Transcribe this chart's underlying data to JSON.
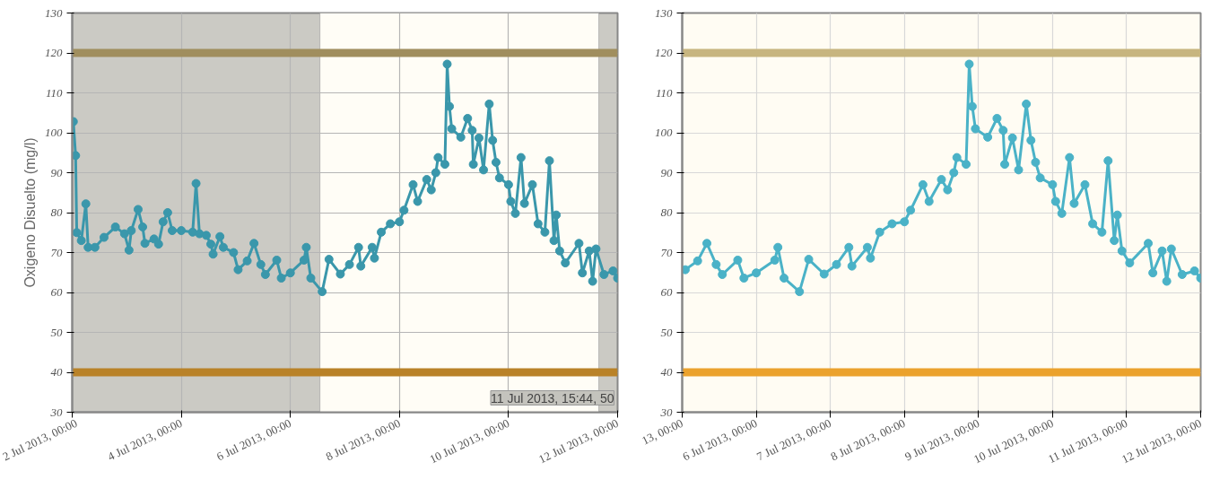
{
  "chart_data": [
    {
      "type": "line",
      "ylabel": "Oxigeno Disuelto (mg/l)",
      "marker": "circle",
      "line_style": "solid",
      "grid": true,
      "xlim": [
        "2013-07-02",
        "2013-07-12"
      ],
      "ylim": [
        30,
        130
      ],
      "xticks": [
        {
          "value": "2013-07-02",
          "label": "2 Jul 2013, 00:00"
        },
        {
          "value": "2013-07-04",
          "label": "4 Jul 2013, 00:00"
        },
        {
          "value": "2013-07-06",
          "label": "6 Jul 2013, 00:00"
        },
        {
          "value": "2013-07-08",
          "label": "8 Jul 2013, 00:00"
        },
        {
          "value": "2013-07-10",
          "label": "10 Jul 2013, 00:00"
        },
        {
          "value": "2013-07-12",
          "label": "12 Jul 2013, 00:00"
        }
      ],
      "yticks": [
        30,
        40,
        50,
        60,
        70,
        80,
        90,
        100,
        110,
        120,
        130
      ],
      "ref_lines": [
        {
          "axis": "y",
          "value": 120,
          "color": "#a08e5e"
        },
        {
          "axis": "y",
          "value": 40,
          "color": "#b98228"
        }
      ],
      "bands": [
        {
          "axis": "x",
          "from": "2013-07-06T13:00",
          "to": "2013-07-11T15:44",
          "color": "#fffdf6"
        }
      ],
      "annotations": [
        "11 Jul 2013, 15:44, 50"
      ],
      "x": [
        "2013-07-02T00:30",
        "2013-07-02T01:30",
        "2013-07-02T02:00",
        "2013-07-02T04:00",
        "2013-07-02T06:00",
        "2013-07-02T07:00",
        "2013-07-02T10:00",
        "2013-07-02T14:00",
        "2013-07-02T19:00",
        "2013-07-02T23:00",
        "2013-07-03T01:00",
        "2013-07-03T02:00",
        "2013-07-03T05:00",
        "2013-07-03T07:00",
        "2013-07-03T08:00",
        "2013-07-03T12:00",
        "2013-07-03T14:00",
        "2013-07-03T16:00",
        "2013-07-03T18:00",
        "2013-07-03T20:00",
        "2013-07-04T00:00",
        "2013-07-04T05:00",
        "2013-07-04T06:30",
        "2013-07-04T08:00",
        "2013-07-04T11:00",
        "2013-07-04T13:00",
        "2013-07-04T14:00",
        "2013-07-04T17:00",
        "2013-07-04T18:30",
        "2013-07-04T23:00",
        "2013-07-05T01:00",
        "2013-07-05T05:00",
        "2013-07-05T08:00",
        "2013-07-05T11:00",
        "2013-07-05T13:00",
        "2013-07-05T18:00",
        "2013-07-05T20:00",
        "2013-07-06T00:00",
        "2013-07-06T06:00",
        "2013-07-06T07:00",
        "2013-07-06T09:00",
        "2013-07-06T14:00",
        "2013-07-06T17:00",
        "2013-07-06T22:00",
        "2013-07-07T02:00",
        "2013-07-07T06:00",
        "2013-07-07T07:00",
        "2013-07-07T12:00",
        "2013-07-07T13:00",
        "2013-07-07T16:00",
        "2013-07-07T20:00",
        "2013-07-08T00:00",
        "2013-07-08T02:00",
        "2013-07-08T06:00",
        "2013-07-08T08:00",
        "2013-07-08T12:00",
        "2013-07-08T14:00",
        "2013-07-08T16:00",
        "2013-07-08T17:00",
        "2013-07-08T20:00",
        "2013-07-08T21:00",
        "2013-07-08T22:00",
        "2013-07-08T23:00",
        "2013-07-09T03:00",
        "2013-07-09T06:00",
        "2013-07-09T08:00",
        "2013-07-09T08:30",
        "2013-07-09T11:00",
        "2013-07-09T13:00",
        "2013-07-09T15:30",
        "2013-07-09T17:00",
        "2013-07-09T18:30",
        "2013-07-09T20:00",
        "2013-07-10T00:00",
        "2013-07-10T01:00",
        "2013-07-10T03:00",
        "2013-07-10T05:30",
        "2013-07-10T07:00",
        "2013-07-10T10:30",
        "2013-07-10T13:00",
        "2013-07-10T16:00",
        "2013-07-10T18:00",
        "2013-07-10T20:00",
        "2013-07-10T21:00",
        "2013-07-10T22:30",
        "2013-07-11T01:00",
        "2013-07-11T07:00",
        "2013-07-11T08:30",
        "2013-07-11T11:30",
        "2013-07-11T13:00",
        "2013-07-11T14:30",
        "2013-07-11T18:00",
        "2013-07-11T22:00",
        "2013-07-12T00:00"
      ],
      "series": [
        {
          "color": "#3a97ab",
          "values": [
            102.8,
            94.3,
            75,
            73,
            82.2,
            71.3,
            71.3,
            73.8,
            76.4,
            74.7,
            70.6,
            75.5,
            80.8,
            76.4,
            72.3,
            73.4,
            72.1,
            77.7,
            80,
            75.5,
            75.5,
            75.1,
            87.3,
            74.7,
            74.3,
            72.1,
            69.6,
            74,
            71.3,
            70,
            65.7,
            67.9,
            72.3,
            67,
            64.5,
            68.1,
            63.6,
            64.9,
            68.1,
            71.3,
            63.6,
            60.2,
            68.3,
            64.6,
            67,
            71.3,
            66.6,
            71.3,
            68.6,
            75.1,
            77.2,
            77.7,
            80.6,
            87,
            82.8,
            88.3,
            85.7,
            90,
            93.8,
            92.1,
            117.2,
            106.6,
            101,
            98.9,
            103.6,
            100.6,
            92.1,
            98.7,
            90.7,
            107.2,
            98.1,
            92.6,
            88.7,
            87,
            82.8,
            79.8,
            93.8,
            82.3,
            87,
            77.2,
            75.1,
            93,
            73,
            79.4,
            70.4,
            67.4,
            72.3,
            64.9,
            70.4,
            62.8,
            70.9,
            64.5,
            65.4,
            63.6
          ]
        }
      ]
    },
    {
      "type": "line",
      "marker": "circle",
      "line_style": "solid",
      "grid": true,
      "xlim": [
        "2013-07-05",
        "2013-07-12"
      ],
      "ylim": [
        30,
        130
      ],
      "xticks": [
        {
          "value": "2013-07-05",
          "label": "13, 00:00"
        },
        {
          "value": "2013-07-06",
          "label": "6 Jul 2013, 00:00"
        },
        {
          "value": "2013-07-07",
          "label": "7 Jul 2013, 00:00"
        },
        {
          "value": "2013-07-08",
          "label": "8 Jul 2013, 00:00"
        },
        {
          "value": "2013-07-09",
          "label": "9 Jul 2013, 00:00"
        },
        {
          "value": "2013-07-10",
          "label": "10 Jul 2013, 00:00"
        },
        {
          "value": "2013-07-11",
          "label": "11 Jul 2013, 00:00"
        },
        {
          "value": "2013-07-12",
          "label": "12 Jul 2013, 00:00"
        }
      ],
      "yticks": [
        30,
        40,
        50,
        60,
        70,
        80,
        90,
        100,
        110,
        120,
        130
      ],
      "ref_lines": [
        {
          "axis": "y",
          "value": 120,
          "color": "#c7b57f"
        },
        {
          "axis": "y",
          "value": 40,
          "color": "#eba22d"
        }
      ],
      "x": [
        "2013-07-05T01:00",
        "2013-07-05T05:00",
        "2013-07-05T08:00",
        "2013-07-05T11:00",
        "2013-07-05T13:00",
        "2013-07-05T18:00",
        "2013-07-05T20:00",
        "2013-07-06T00:00",
        "2013-07-06T06:00",
        "2013-07-06T07:00",
        "2013-07-06T09:00",
        "2013-07-06T14:00",
        "2013-07-06T17:00",
        "2013-07-06T22:00",
        "2013-07-07T02:00",
        "2013-07-07T06:00",
        "2013-07-07T07:00",
        "2013-07-07T12:00",
        "2013-07-07T13:00",
        "2013-07-07T16:00",
        "2013-07-07T20:00",
        "2013-07-08T00:00",
        "2013-07-08T02:00",
        "2013-07-08T06:00",
        "2013-07-08T08:00",
        "2013-07-08T12:00",
        "2013-07-08T14:00",
        "2013-07-08T16:00",
        "2013-07-08T17:00",
        "2013-07-08T20:00",
        "2013-07-08T21:00",
        "2013-07-08T22:00",
        "2013-07-08T23:00",
        "2013-07-09T03:00",
        "2013-07-09T06:00",
        "2013-07-09T08:00",
        "2013-07-09T08:30",
        "2013-07-09T11:00",
        "2013-07-09T13:00",
        "2013-07-09T15:30",
        "2013-07-09T17:00",
        "2013-07-09T18:30",
        "2013-07-09T20:00",
        "2013-07-10T00:00",
        "2013-07-10T01:00",
        "2013-07-10T03:00",
        "2013-07-10T05:30",
        "2013-07-10T07:00",
        "2013-07-10T10:30",
        "2013-07-10T13:00",
        "2013-07-10T16:00",
        "2013-07-10T18:00",
        "2013-07-10T20:00",
        "2013-07-10T21:00",
        "2013-07-10T22:30",
        "2013-07-11T01:00",
        "2013-07-11T07:00",
        "2013-07-11T08:30",
        "2013-07-11T11:30",
        "2013-07-11T13:00",
        "2013-07-11T14:30",
        "2013-07-11T18:00",
        "2013-07-11T22:00",
        "2013-07-12T00:00"
      ],
      "series": [
        {
          "color": "#4ab2c7",
          "values": [
            65.7,
            67.9,
            72.3,
            67,
            64.5,
            68.1,
            63.6,
            64.9,
            68.1,
            71.3,
            63.6,
            60.2,
            68.3,
            64.6,
            67,
            71.3,
            66.6,
            71.3,
            68.6,
            75.1,
            77.2,
            77.7,
            80.6,
            87,
            82.8,
            88.3,
            85.7,
            90,
            93.8,
            92.1,
            117.2,
            106.6,
            101,
            98.9,
            103.6,
            100.6,
            92.1,
            98.7,
            90.7,
            107.2,
            98.1,
            92.6,
            88.7,
            87,
            82.8,
            79.8,
            93.8,
            82.3,
            87,
            77.2,
            75.1,
            93,
            73,
            79.4,
            70.4,
            67.4,
            72.3,
            64.9,
            70.4,
            62.8,
            70.9,
            64.5,
            65.4,
            63.6
          ]
        }
      ]
    }
  ]
}
